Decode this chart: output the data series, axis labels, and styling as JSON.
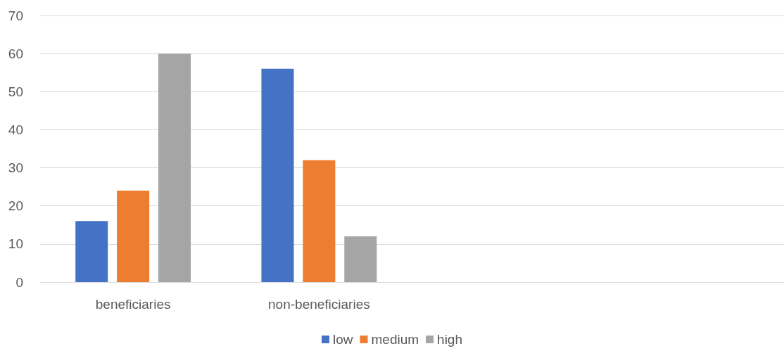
{
  "chart_data": {
    "type": "bar",
    "categories": [
      "beneficiaries",
      "non-beneficiaries",
      null,
      null
    ],
    "series": [
      {
        "name": "low",
        "color": "#4472c4",
        "values": [
          16,
          56,
          null,
          null
        ]
      },
      {
        "name": "medium",
        "color": "#ed7d31",
        "values": [
          24,
          32,
          null,
          null
        ]
      },
      {
        "name": "high",
        "color": "#a5a5a5",
        "values": [
          60,
          12,
          null,
          null
        ]
      }
    ],
    "ylim": [
      0,
      70
    ],
    "yticks": [
      0,
      10,
      20,
      30,
      40,
      50,
      60,
      70
    ],
    "grid": "y",
    "legend": "bottom"
  }
}
